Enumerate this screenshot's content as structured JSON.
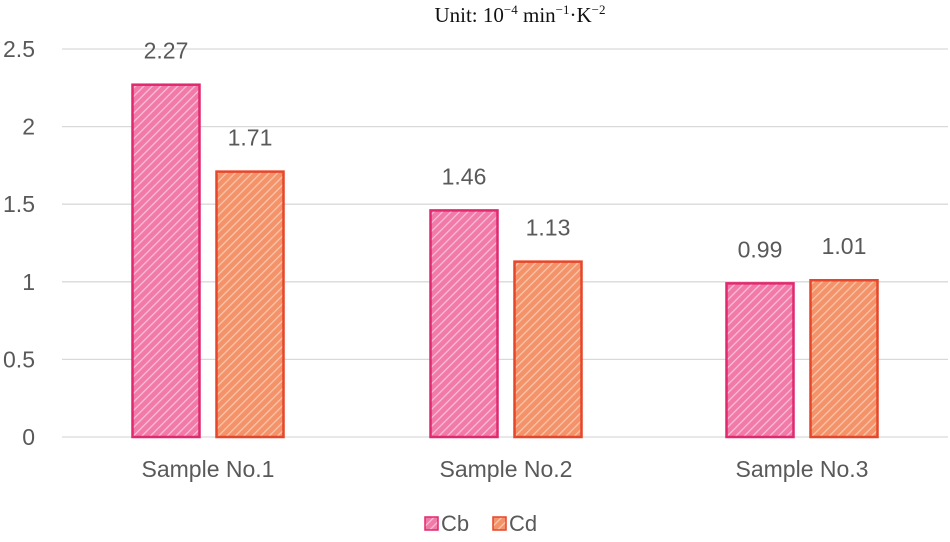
{
  "chart_data": {
    "type": "bar",
    "title": "Unit: 10",
    "title_parts": {
      "prefix": "Unit: 10",
      "exp1": "−4",
      "mid": " min",
      "exp2": "−1",
      "dot": "·K",
      "exp3": "−2"
    },
    "categories": [
      "Sample No.1",
      "Sample No.2",
      "Sample No.3"
    ],
    "series": [
      {
        "name": "Cb",
        "values": [
          2.27,
          1.46,
          0.99
        ],
        "labels": [
          "2.27",
          "1.46",
          "0.99"
        ],
        "fill": "#f17aa9",
        "stroke": "#e0296f"
      },
      {
        "name": "Cd",
        "values": [
          1.71,
          1.13,
          1.01
        ],
        "labels": [
          "1.71",
          "1.13",
          "1.01"
        ],
        "fill": "#f4936a",
        "stroke": "#e6472a"
      }
    ],
    "y_ticks": [
      "0",
      "0.5",
      "1",
      "1.5",
      "2",
      "2.5"
    ],
    "ylim": [
      0,
      2.5
    ],
    "grid": true,
    "legend": "bottom-center"
  }
}
